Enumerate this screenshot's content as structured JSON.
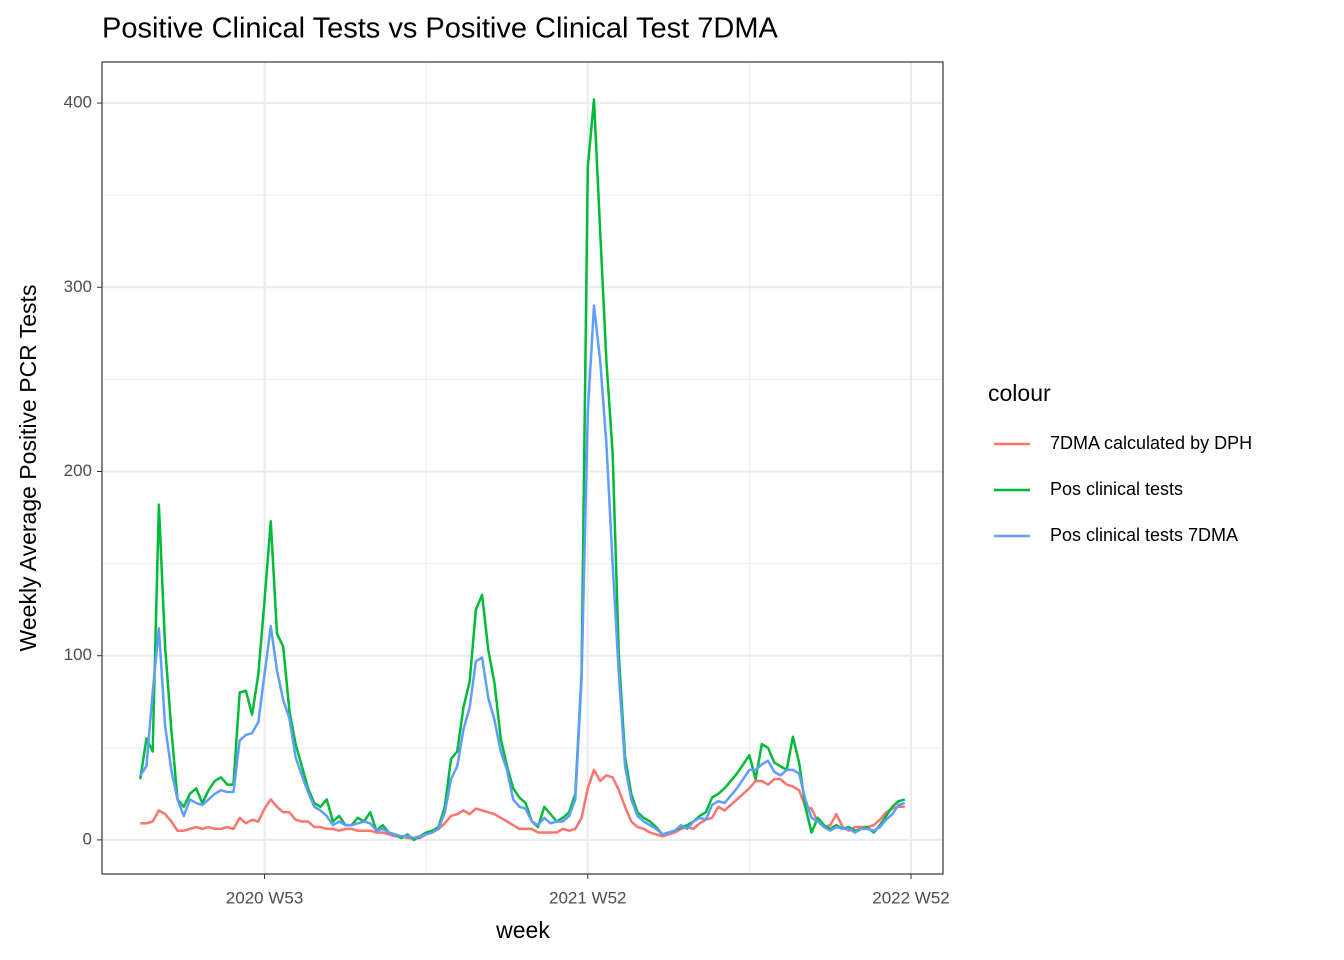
{
  "chart_data": {
    "type": "line",
    "title": "Positive Clinical Tests vs Positive Clinical Test 7DMA",
    "x_label": "week",
    "y_label": "Weekly Average Positive PCR Tests",
    "legend_title": "colour",
    "x": [
      "2020 W33",
      "2020 W34",
      "2020 W35",
      "2020 W36",
      "2020 W37",
      "2020 W38",
      "2020 W39",
      "2020 W40",
      "2020 W41",
      "2020 W42",
      "2020 W43",
      "2020 W44",
      "2020 W45",
      "2020 W46",
      "2020 W47",
      "2020 W48",
      "2020 W49",
      "2020 W50",
      "2020 W51",
      "2020 W52",
      "2020 W53",
      "2021 W01",
      "2021 W02",
      "2021 W03",
      "2021 W04",
      "2021 W05",
      "2021 W06",
      "2021 W07",
      "2021 W08",
      "2021 W09",
      "2021 W10",
      "2021 W11",
      "2021 W12",
      "2021 W13",
      "2021 W14",
      "2021 W15",
      "2021 W16",
      "2021 W17",
      "2021 W18",
      "2021 W19",
      "2021 W20",
      "2021 W21",
      "2021 W22",
      "2021 W23",
      "2021 W24",
      "2021 W25",
      "2021 W26",
      "2021 W27",
      "2021 W28",
      "2021 W29",
      "2021 W30",
      "2021 W31",
      "2021 W32",
      "2021 W33",
      "2021 W34",
      "2021 W35",
      "2021 W36",
      "2021 W37",
      "2021 W38",
      "2021 W39",
      "2021 W40",
      "2021 W41",
      "2021 W42",
      "2021 W43",
      "2021 W44",
      "2021 W45",
      "2021 W46",
      "2021 W47",
      "2021 W48",
      "2021 W49",
      "2021 W50",
      "2021 W51",
      "2021 W52",
      "2022 W01",
      "2022 W02",
      "2022 W03",
      "2022 W04",
      "2022 W05",
      "2022 W06",
      "2022 W07",
      "2022 W08",
      "2022 W09",
      "2022 W10",
      "2022 W11",
      "2022 W12",
      "2022 W13",
      "2022 W14",
      "2022 W15",
      "2022 W16",
      "2022 W17",
      "2022 W18",
      "2022 W19",
      "2022 W20",
      "2022 W21",
      "2022 W22",
      "2022 W23",
      "2022 W24",
      "2022 W25",
      "2022 W26",
      "2022 W27",
      "2022 W28",
      "2022 W29",
      "2022 W30",
      "2022 W31",
      "2022 W32",
      "2022 W33",
      "2022 W34",
      "2022 W35",
      "2022 W36",
      "2022 W37",
      "2022 W38",
      "2022 W39",
      "2022 W40",
      "2022 W41",
      "2022 W42",
      "2022 W43",
      "2022 W44",
      "2022 W45",
      "2022 W46",
      "2022 W47",
      "2022 W48",
      "2022 W49",
      "2022 W50",
      "2022 W51"
    ],
    "series": [
      {
        "name": "7DMA calculated by DPH",
        "color": "#f8766d",
        "values": [
          9,
          9,
          10,
          16,
          14,
          10,
          5,
          5,
          6,
          7,
          6,
          7,
          6,
          6,
          7,
          6,
          12,
          9,
          11,
          10,
          17,
          22,
          18,
          15,
          15,
          11,
          10,
          10,
          7,
          7,
          6,
          6,
          5,
          6,
          6,
          5,
          5,
          5,
          4,
          4,
          3,
          2,
          2,
          1,
          1,
          1,
          3,
          5,
          6,
          9,
          13,
          14,
          16,
          14,
          17,
          16,
          15,
          14,
          12,
          10,
          8,
          6,
          6,
          6,
          4,
          4,
          4,
          4,
          6,
          5,
          6,
          12,
          28,
          38,
          32,
          35,
          34,
          27,
          18,
          10,
          7,
          6,
          4,
          3,
          2,
          3,
          4,
          6,
          7,
          6,
          9,
          11,
          12,
          18,
          16,
          19,
          22,
          25,
          28,
          32,
          32,
          30,
          33,
          33,
          30,
          29,
          27,
          18,
          17,
          10,
          7,
          8,
          14,
          7,
          5,
          7,
          7,
          7,
          8,
          11,
          15,
          17,
          18,
          18
        ]
      },
      {
        "name": "Pos clinical tests",
        "color": "#00ba38",
        "values": [
          33,
          55,
          48,
          182,
          105,
          60,
          22,
          18,
          25,
          28,
          20,
          27,
          32,
          34,
          30,
          30,
          80,
          81,
          68,
          90,
          130,
          173,
          112,
          105,
          70,
          52,
          40,
          28,
          20,
          18,
          22,
          10,
          13,
          8,
          8,
          12,
          10,
          15,
          5,
          8,
          4,
          3,
          1,
          3,
          0,
          2,
          4,
          5,
          7,
          18,
          44,
          48,
          72,
          86,
          125,
          133,
          103,
          85,
          55,
          40,
          28,
          23,
          20,
          10,
          7,
          18,
          14,
          10,
          12,
          15,
          25,
          90,
          365,
          402,
          330,
          260,
          210,
          100,
          45,
          25,
          15,
          12,
          10,
          7,
          3,
          4,
          5,
          7,
          8,
          10,
          13,
          15,
          23,
          25,
          28,
          32,
          36,
          41,
          46,
          33,
          52,
          50,
          42,
          40,
          38,
          56,
          42,
          18,
          4,
          12,
          8,
          6,
          8,
          6,
          7,
          5,
          6,
          7,
          4,
          8,
          13,
          18,
          21,
          22
        ]
      },
      {
        "name": "Pos clinical tests 7DMA",
        "color": "#619cff",
        "values": [
          35,
          40,
          80,
          115,
          62,
          38,
          22,
          13,
          22,
          20,
          19,
          22,
          25,
          27,
          26,
          26,
          54,
          57,
          58,
          64,
          90,
          116,
          92,
          76,
          66,
          45,
          35,
          26,
          18,
          16,
          13,
          8,
          10,
          8,
          8,
          9,
          10,
          9,
          5,
          6,
          4,
          3,
          2,
          2,
          1,
          2,
          3,
          4,
          6,
          15,
          33,
          40,
          60,
          72,
          97,
          99,
          77,
          65,
          48,
          38,
          22,
          18,
          17,
          10,
          8,
          12,
          9,
          10,
          10,
          13,
          22,
          87,
          232,
          290,
          260,
          215,
          150,
          90,
          40,
          22,
          13,
          10,
          8,
          6,
          3,
          4,
          5,
          8,
          6,
          10,
          12,
          11,
          19,
          21,
          20,
          24,
          28,
          33,
          38,
          38,
          41,
          43,
          37,
          35,
          38,
          38,
          36,
          22,
          12,
          10,
          7,
          5,
          7,
          6,
          6,
          4,
          6,
          6,
          5,
          7,
          11,
          14,
          19,
          20
        ]
      }
    ],
    "xticks": [
      "2020 W53",
      "2021 W52",
      "2022 W52"
    ],
    "xminor": [
      "2021 W26",
      "2022 W26"
    ],
    "ylim": [
      -18.5,
      422.3
    ],
    "yticks": [
      0,
      100,
      200,
      300,
      400
    ],
    "yminor": [
      50,
      150,
      250,
      350
    ],
    "grid": true,
    "legend": "right"
  }
}
